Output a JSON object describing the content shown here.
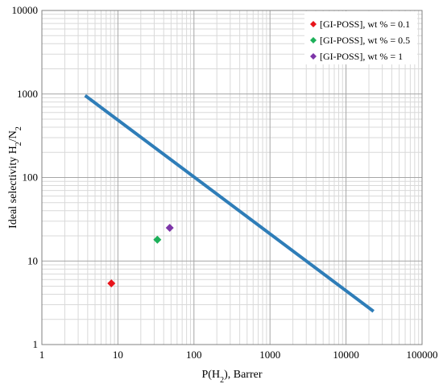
{
  "chart_data": {
    "type": "scatter",
    "title": "",
    "xlabel_parts": [
      {
        "text": "P(H",
        "sub": false
      },
      {
        "text": "2",
        "sub": true
      },
      {
        "text": "), Barrer",
        "sub": false
      }
    ],
    "ylabel_parts": [
      {
        "text": "Ideal selectivity H",
        "sub": false
      },
      {
        "text": "2",
        "sub": true
      },
      {
        "text": "/N",
        "sub": false
      },
      {
        "text": "2",
        "sub": true
      }
    ],
    "xscale": "log",
    "yscale": "log",
    "xlim": [
      1,
      100000
    ],
    "ylim": [
      1,
      10000
    ],
    "x_ticks": [
      1,
      10,
      100,
      1000,
      10000,
      100000
    ],
    "x_tick_labels": [
      "1",
      "10",
      "100",
      "1000",
      "10000",
      "100000"
    ],
    "y_ticks": [
      1,
      10,
      100,
      1000,
      10000
    ],
    "y_tick_labels": [
      "1",
      "10",
      "100",
      "1000",
      "10000"
    ],
    "grid": true,
    "legend_position": "top-right",
    "upper_bound_line": {
      "color": "#2E7DB8",
      "points": [
        [
          3.7,
          960
        ],
        [
          23000,
          2.5
        ]
      ]
    },
    "series": [
      {
        "name": "[GI-POSS], wt % = 0.1",
        "color": "#E8141B",
        "marker": "diamond",
        "points": [
          [
            8.2,
            5.4
          ]
        ]
      },
      {
        "name": "[GI-POSS], wt % = 0.5",
        "color": "#1DB05A",
        "marker": "diamond",
        "points": [
          [
            33,
            18
          ]
        ]
      },
      {
        "name": "[GI-POSS], wt % = 1",
        "color": "#7D35A8",
        "marker": "diamond",
        "points": [
          [
            48,
            25
          ]
        ]
      }
    ]
  }
}
